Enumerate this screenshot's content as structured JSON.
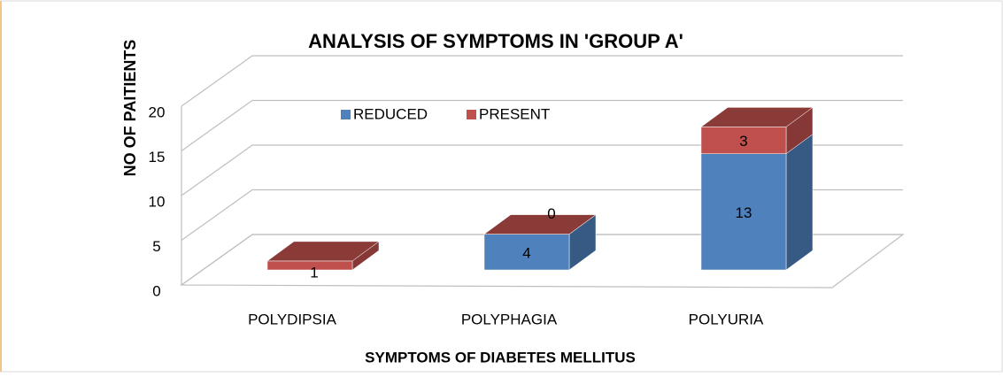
{
  "chart_data": {
    "type": "bar",
    "stacked": true,
    "title": "ANALYSIS  OF SYMPTOMS IN 'GROUP  A'",
    "x_label": "SYMPTOMS OF DIABETES MELLITUS",
    "y_label": "NO OF PAITIENTS",
    "categories": [
      "POLYDIPSIA",
      "POLYPHAGIA",
      "POLYURIA"
    ],
    "series": [
      {
        "name": "REDUCED",
        "color": "#4f81bd",
        "values": [
          0,
          4,
          13
        ]
      },
      {
        "name": "PRESENT",
        "color": "#c0504d",
        "values": [
          1,
          0,
          3
        ]
      }
    ],
    "ylim": [
      0,
      20
    ],
    "yticks": [
      0,
      5,
      10,
      15,
      20
    ],
    "grid": true,
    "legend": "top"
  }
}
